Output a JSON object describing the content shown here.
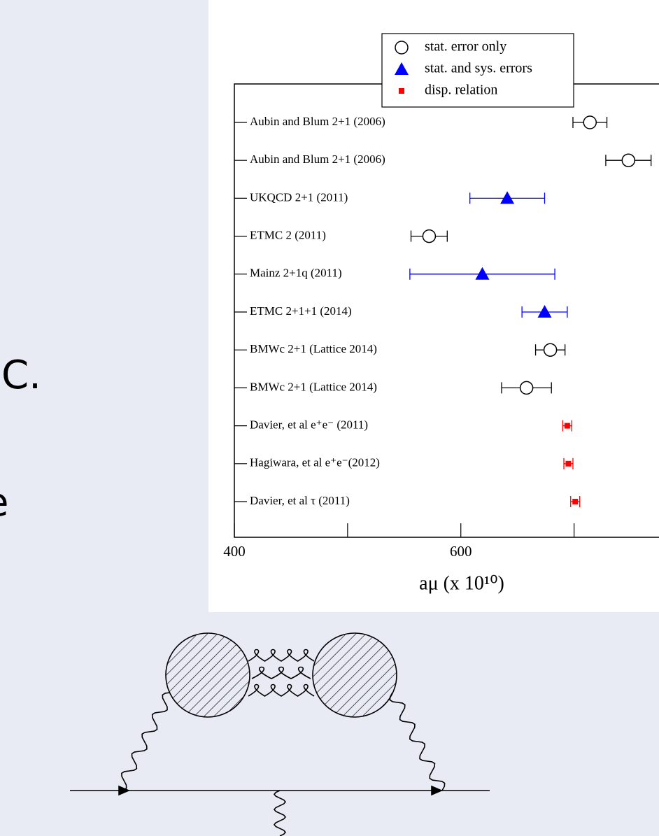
{
  "chart_data": {
    "type": "scatter",
    "orientation": "horizontal",
    "categories": [
      "Aubin and Blum 2+1 (2006)",
      "Aubin and Blum 2+1 (2006)",
      "UKQCD 2+1 (2011)",
      "ETMC 2 (2011)",
      "Mainz 2+1q (2011)",
      "ETMC 2+1+1 (2014)",
      "BMWc 2+1 (Lattice 2014)",
      "BMWc 2+1 (Lattice 2014)",
      "Davier, et al e⁺e⁻ (2011)",
      "Hagiwara, et al e⁺e⁻(2012)",
      "Davier, et al τ (2011)"
    ],
    "series": [
      {
        "name": "stat. error only",
        "color": "#000000",
        "marker": "circle",
        "values": [
          714,
          748,
          null,
          572,
          null,
          null,
          679,
          658,
          null,
          null,
          null
        ],
        "errors": [
          15,
          20,
          null,
          16,
          null,
          null,
          13,
          22,
          null,
          null,
          null
        ]
      },
      {
        "name": "stat. and sys. errors",
        "color": "#0000ff",
        "marker": "triangle",
        "values": [
          null,
          null,
          641,
          null,
          619,
          674,
          null,
          null,
          null,
          null,
          null
        ],
        "errors": [
          null,
          null,
          33,
          null,
          64,
          20,
          null,
          null,
          null,
          null,
          null
        ]
      },
      {
        "name": "disp. relation",
        "color": "#ff0000",
        "marker": "square",
        "values": [
          null,
          null,
          null,
          null,
          null,
          null,
          null,
          null,
          694,
          695,
          701
        ],
        "errors": [
          null,
          null,
          null,
          null,
          null,
          null,
          null,
          null,
          4,
          4,
          4
        ]
      }
    ],
    "x_label": "aμ (x 10¹⁰)",
    "xlim": [
      400,
      775
    ],
    "xticks": [
      400,
      600
    ],
    "minor_xticks": [
      500,
      700
    ],
    "legend": "top"
  },
  "slide": {
    "fragments": [
      "C.",
      "e"
    ]
  }
}
